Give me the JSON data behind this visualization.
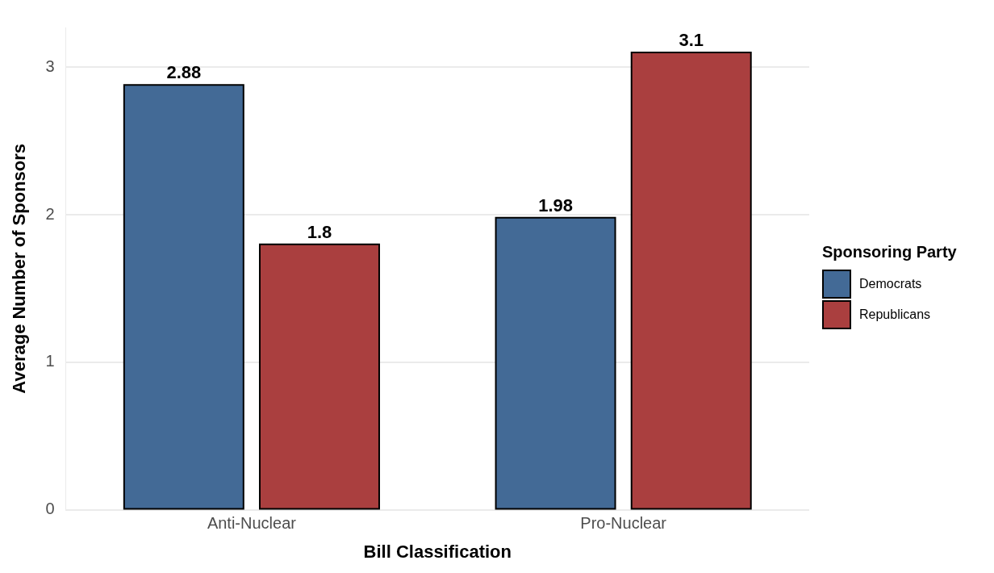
{
  "chart_data": {
    "type": "bar",
    "xlabel": "Bill Classification",
    "ylabel": "Average Number of Sponsors",
    "legend_title": "Sponsoring Party",
    "categories": [
      "Anti-Nuclear",
      "Pro-Nuclear"
    ],
    "series": [
      {
        "name": "Democrats",
        "color": "#436a96",
        "values": [
          2.88,
          1.98
        ]
      },
      {
        "name": "Republicans",
        "color": "#aa3f3f",
        "values": [
          1.8,
          3.1
        ]
      }
    ],
    "ylim": [
      0,
      3.27
    ],
    "yticks": [
      0,
      1,
      2,
      3
    ],
    "grid": "y",
    "legend": "right",
    "data_labels": true
  }
}
